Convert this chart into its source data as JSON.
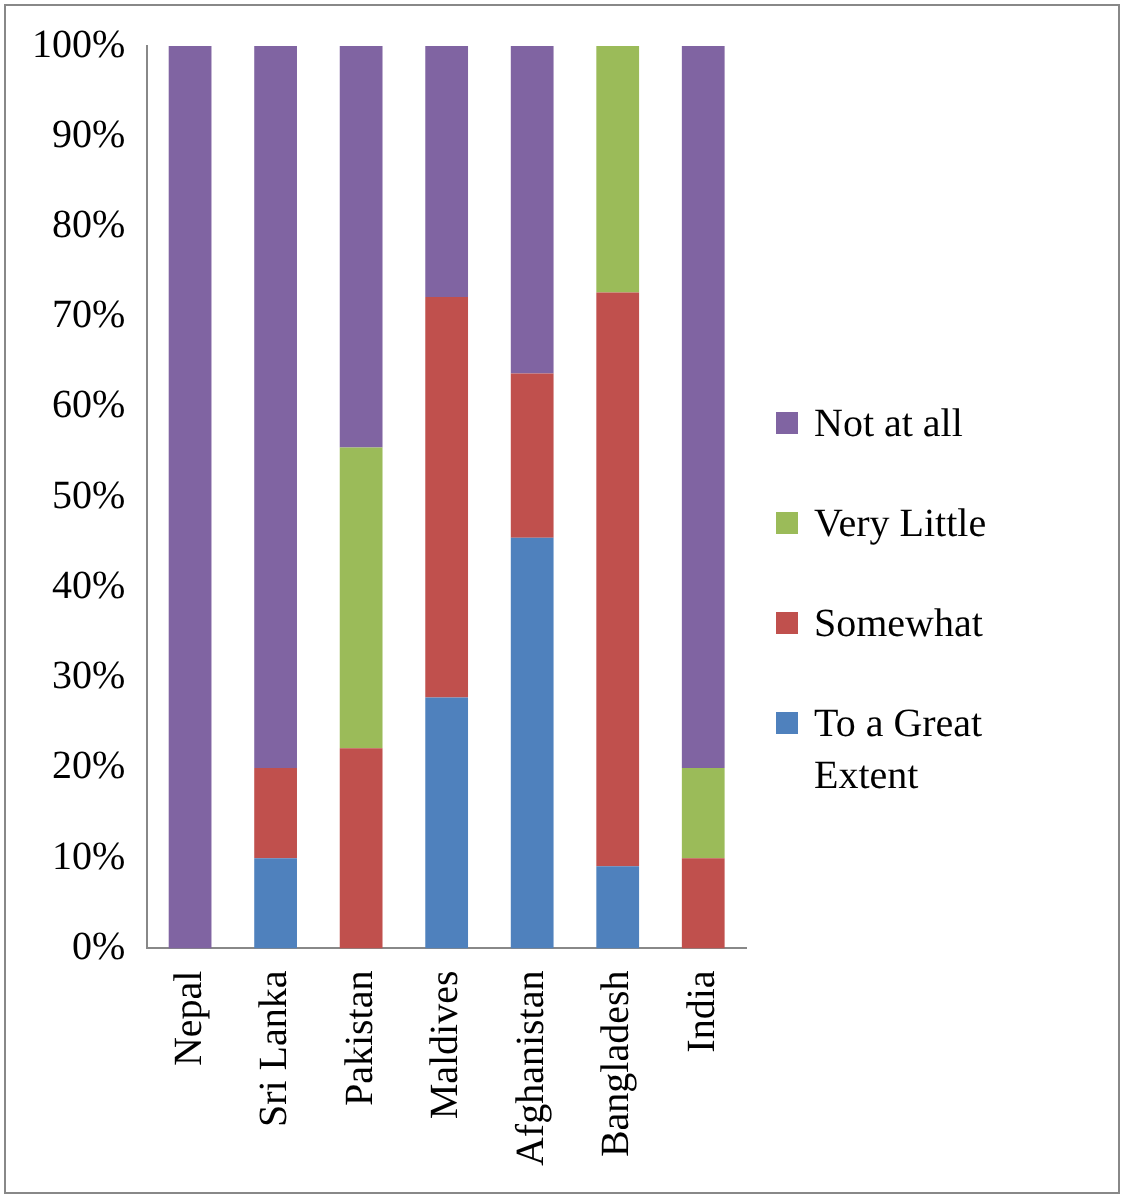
{
  "chart_data": {
    "type": "bar",
    "stacked": true,
    "categories": [
      "Nepal",
      "Sri Lanka",
      "Pakistan",
      "Maldives",
      "Afghanistan",
      "Bangladesh",
      "India"
    ],
    "series": [
      {
        "name": "To a Great Extent",
        "color": "#4f81bd",
        "values": [
          0,
          10,
          0,
          27.8,
          45.5,
          9.1,
          0
        ]
      },
      {
        "name": "Somewhat",
        "color": "#c0504d",
        "values": [
          0,
          10,
          22.2,
          44.4,
          18.2,
          63.6,
          10
        ]
      },
      {
        "name": "Very Little",
        "color": "#9bbb59",
        "values": [
          0,
          0,
          33.3,
          0,
          0,
          27.3,
          10
        ]
      },
      {
        "name": "Not at all",
        "color": "#8064a2",
        "values": [
          100,
          80,
          44.5,
          27.8,
          36.3,
          0,
          80
        ]
      }
    ],
    "ylim": [
      0,
      100
    ],
    "yticks": [
      {
        "value": 0,
        "label": "0%"
      },
      {
        "value": 10,
        "label": "10%"
      },
      {
        "value": 20,
        "label": "20%"
      },
      {
        "value": 30,
        "label": "30%"
      },
      {
        "value": 40,
        "label": "40%"
      },
      {
        "value": 50,
        "label": "50%"
      },
      {
        "value": 60,
        "label": "60%"
      },
      {
        "value": 70,
        "label": "70%"
      },
      {
        "value": 80,
        "label": "80%"
      },
      {
        "value": 90,
        "label": "90%"
      },
      {
        "value": 100,
        "label": "100%"
      }
    ],
    "grid": false,
    "legend": "right"
  }
}
